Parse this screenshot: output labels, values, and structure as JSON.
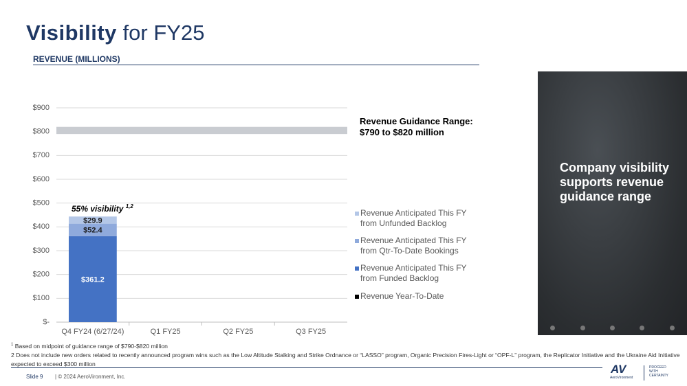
{
  "header": {
    "title_bold": "Visibility",
    "title_rest": "for FY25"
  },
  "chart_data": {
    "type": "bar",
    "stacked": true,
    "title": "REVENUE (MILLIONS)",
    "categories": [
      "Q4 FY24 (6/27/24)",
      "Q1 FY25",
      "Q2 FY25",
      "Q3 FY25"
    ],
    "series": [
      {
        "name": "Revenue Anticipated This FY from Unfunded Backlog",
        "color": "#b4c7e7",
        "values": [
          29.9,
          null,
          null,
          null
        ],
        "value_labels": [
          "$29.9",
          null,
          null,
          null
        ]
      },
      {
        "name": "Revenue Anticipated This FY from Qtr-To-Date Bookings",
        "color": "#8faadc",
        "values": [
          52.4,
          null,
          null,
          null
        ],
        "value_labels": [
          "$52.4",
          null,
          null,
          null
        ]
      },
      {
        "name": "Revenue Anticipated This FY from Funded Backlog",
        "color": "#4472c4",
        "values": [
          361.2,
          null,
          null,
          null
        ],
        "value_labels": [
          "$361.2",
          null,
          null,
          null
        ]
      },
      {
        "name": "Revenue Year-To-Date",
        "color": "#000000",
        "values": [
          null,
          null,
          null,
          null
        ]
      }
    ],
    "ylim": [
      0,
      900
    ],
    "yticks": [
      {
        "value": 0,
        "label": "$-"
      },
      {
        "value": 100,
        "label": "$100"
      },
      {
        "value": 200,
        "label": "$200"
      },
      {
        "value": 300,
        "label": "$300"
      },
      {
        "value": 400,
        "label": "$400"
      },
      {
        "value": 500,
        "label": "$500"
      },
      {
        "value": 600,
        "label": "$600"
      },
      {
        "value": 700,
        "label": "$700"
      },
      {
        "value": 800,
        "label": "$800"
      },
      {
        "value": 900,
        "label": "$900"
      }
    ],
    "grid": true,
    "guidance_band": {
      "range": [
        790,
        820
      ],
      "color": "#c9ccd1",
      "label_lines": [
        "Revenue Guidance Range:",
        "$790 to $820 million"
      ]
    },
    "annotation": {
      "text": "55% visibility",
      "superscript": "1,2"
    }
  },
  "side_panel": {
    "text": "Company visibility supports revenue guidance range"
  },
  "footnotes": [
    {
      "marker": "1",
      "text": "Based on midpoint of guidance range of $790-$820 million"
    },
    {
      "marker": "2",
      "text": "Does not include new orders related to recently announced program wins such as the Low Altitude Stalking and Strike Ordnance or “LASSO” program, Organic Precision Fires-Light or “OPF-L” program, the Replicator Initiative and the Ukraine Aid Initiative expected to exceed $300 million"
    }
  ],
  "footer": {
    "slide": "Slide 9",
    "copyright": "| © 2024 AeroVironment, Inc.",
    "logo_mark": "AV",
    "logo_name": "AeroVironment",
    "tagline": [
      "PROCEED",
      "WITH",
      "CERTAINTY"
    ]
  }
}
